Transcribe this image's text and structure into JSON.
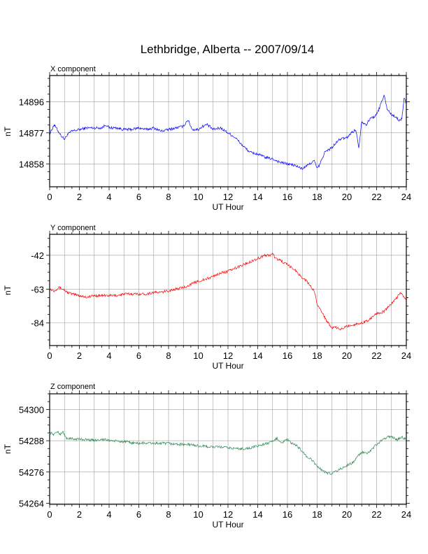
{
  "title": "Lethbridge, Alberta -- 2007/09/14",
  "chart_data": [
    {
      "type": "line",
      "title": "X component",
      "xlabel": "UT Hour",
      "ylabel": "nT",
      "xlim": [
        0,
        24
      ],
      "ylim": [
        14844,
        14912
      ],
      "x_ticks": [
        0,
        2,
        4,
        6,
        8,
        10,
        12,
        14,
        16,
        18,
        20,
        22,
        24
      ],
      "y_ticks": [
        14858,
        14877,
        14896
      ],
      "grid": true,
      "series": [
        {
          "color": "#0000ff",
          "x": [
            0,
            0.3,
            0.5,
            0.8,
            1.0,
            1.2,
            1.5,
            2.0,
            2.5,
            3.0,
            3.5,
            3.8,
            4.0,
            4.5,
            5.0,
            5.5,
            6.0,
            6.5,
            7.0,
            7.5,
            8.0,
            8.5,
            9.0,
            9.3,
            9.6,
            10.0,
            10.3,
            10.6,
            11.0,
            11.5,
            12.0,
            12.5,
            13.0,
            13.5,
            14.0,
            14.5,
            15.0,
            15.5,
            16.0,
            16.5,
            17.0,
            17.5,
            17.8,
            18.0,
            18.2,
            18.5,
            19.0,
            19.5,
            20.0,
            20.3,
            20.6,
            20.8,
            21.0,
            21.3,
            21.6,
            21.9,
            22.1,
            22.3,
            22.5,
            22.7,
            23.0,
            23.3,
            23.5,
            23.7,
            23.85,
            24.0
          ],
          "y": [
            14876,
            14882,
            14879,
            14875,
            14873,
            14876,
            14878,
            14879,
            14880,
            14880,
            14880,
            14882,
            14880,
            14880,
            14879,
            14879,
            14880,
            14879,
            14880,
            14878,
            14879,
            14880,
            14881,
            14885,
            14879,
            14879,
            14881,
            14882,
            14879,
            14880,
            14877,
            14874,
            14869,
            14865,
            14864,
            14862,
            14861,
            14859,
            14858,
            14857,
            14855,
            14858,
            14860,
            14855,
            14858,
            14865,
            14868,
            14873,
            14874,
            14877,
            14879,
            14868,
            14884,
            14882,
            14886,
            14887,
            14890,
            14895,
            14900,
            14892,
            14888,
            14887,
            14884,
            14886,
            14898,
            14895
          ]
        }
      ]
    },
    {
      "type": "line",
      "title": "Y component",
      "xlabel": "UT Hour",
      "ylabel": "nT",
      "xlim": [
        0,
        24
      ],
      "ylim": [
        -98,
        -29
      ],
      "x_ticks": [
        0,
        2,
        4,
        6,
        8,
        10,
        12,
        14,
        16,
        18,
        20,
        22,
        24
      ],
      "y_ticks": [
        -42,
        -63,
        -84
      ],
      "grid": true,
      "series": [
        {
          "color": "#ff0000",
          "x": [
            0,
            0.3,
            0.6,
            0.9,
            1.2,
            1.5,
            2.0,
            2.5,
            3.0,
            3.5,
            4.0,
            4.5,
            5.0,
            5.5,
            6.0,
            6.5,
            7.0,
            7.5,
            8.0,
            8.5,
            9.0,
            9.5,
            10.0,
            10.5,
            11.0,
            11.5,
            12.0,
            12.5,
            13.0,
            13.5,
            14.0,
            14.5,
            14.8,
            15.0,
            15.2,
            15.5,
            16.0,
            16.5,
            17.0,
            17.3,
            17.6,
            17.8,
            18.0,
            18.3,
            18.6,
            19.0,
            19.3,
            19.6,
            20.0,
            20.5,
            21.0,
            21.5,
            22.0,
            22.5,
            23.0,
            23.3,
            23.6,
            24.0
          ],
          "y": [
            -63,
            -64,
            -62,
            -63,
            -65,
            -66,
            -67,
            -68,
            -67,
            -67,
            -67,
            -67,
            -66,
            -66,
            -66,
            -66,
            -65,
            -65,
            -64,
            -63,
            -62,
            -60,
            -58,
            -57,
            -55,
            -53,
            -52,
            -50,
            -48,
            -46,
            -44,
            -42,
            -42,
            -41,
            -44,
            -45,
            -48,
            -51,
            -56,
            -58,
            -62,
            -64,
            -72,
            -77,
            -82,
            -87,
            -87,
            -88,
            -86,
            -85,
            -84,
            -82,
            -78,
            -77,
            -72,
            -69,
            -65,
            -70
          ]
        }
      ]
    },
    {
      "type": "line",
      "title": "Z component",
      "xlabel": "UT Hour",
      "ylabel": "nT",
      "xlim": [
        0,
        24
      ],
      "ylim": [
        54263.6,
        54306
      ],
      "x_ticks": [
        0,
        2,
        4,
        6,
        8,
        10,
        12,
        14,
        16,
        18,
        20,
        22,
        24
      ],
      "y_ticks": [
        54264,
        54276,
        54288,
        54300
      ],
      "grid": true,
      "series": [
        {
          "color": "#2e8b57",
          "x": [
            0,
            0.3,
            0.5,
            0.7,
            0.9,
            1.1,
            1.5,
            2.0,
            2.5,
            3.0,
            3.5,
            4.0,
            4.5,
            5.0,
            5.5,
            6.0,
            6.5,
            7.0,
            7.5,
            8.0,
            8.5,
            9.0,
            9.5,
            10.0,
            10.5,
            11.0,
            11.5,
            12.0,
            12.5,
            13.0,
            13.5,
            14.0,
            14.5,
            15.0,
            15.3,
            15.6,
            16.0,
            16.3,
            16.6,
            17.0,
            17.3,
            17.6,
            18.0,
            18.3,
            18.6,
            18.9,
            19.2,
            19.5,
            19.8,
            20.1,
            20.4,
            20.7,
            21.0,
            21.3,
            21.6,
            21.9,
            22.2,
            22.5,
            22.8,
            23.1,
            23.4,
            23.7,
            24.0
          ],
          "y": [
            54291,
            54290.5,
            54291.5,
            54290.5,
            54291.5,
            54289,
            54288.7,
            54288.6,
            54288.4,
            54288.2,
            54288.5,
            54288.2,
            54287.8,
            54287.6,
            54287.2,
            54287.0,
            54287.1,
            54287.0,
            54287.0,
            54286.9,
            54286.7,
            54286.6,
            54286.5,
            54286.0,
            54285.8,
            54285.6,
            54285.6,
            54285.3,
            54285.0,
            54284.9,
            54285.2,
            54286.0,
            54286.8,
            54287.5,
            54289.0,
            54287.3,
            54288.4,
            54286.9,
            54286.2,
            54284.0,
            54281.8,
            54280.8,
            54278.2,
            54276.8,
            54275.8,
            54275.4,
            54276.2,
            54276.9,
            54277.9,
            54278.8,
            54279.6,
            54281.8,
            54283.6,
            54283.0,
            54284.0,
            54286.0,
            54287.5,
            54288.5,
            54289.8,
            54289.2,
            54288.4,
            54289.4,
            54288.6
          ]
        }
      ]
    }
  ]
}
